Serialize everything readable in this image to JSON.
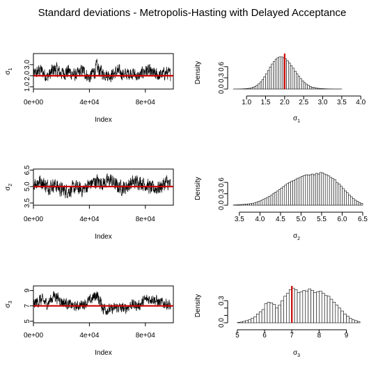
{
  "title": "Standard deviations - Metropolis-Hasting with Delayed Acceptance",
  "colors": {
    "reference_line": "#cc0000",
    "trace": "#000000",
    "bar_fill": "#ffffff"
  },
  "chart_data": [
    {
      "type": "line",
      "panel": "trace-sigma1",
      "xlabel": "Index",
      "ylabel": "σ1",
      "ylabel_base": "σ",
      "ylabel_sub": "1",
      "xlim": [
        0,
        100000
      ],
      "ylim": [
        0.8,
        4.0
      ],
      "xticks": [
        0,
        40000,
        80000
      ],
      "xtick_labels": [
        "0e+00",
        "4e+04",
        "8e+04"
      ],
      "yticks": [
        1.0,
        2.0,
        3.0
      ],
      "ytick_labels": [
        "1.0",
        "2.0",
        "3.0"
      ],
      "x": [
        0,
        5000,
        10000,
        15000,
        20000,
        25000,
        30000,
        35000,
        40000,
        45000,
        50000,
        55000,
        60000,
        65000,
        70000,
        75000,
        80000,
        85000,
        90000,
        95000,
        98000
      ],
      "y": [
        2.1,
        2.5,
        1.9,
        2.6,
        2.2,
        2.4,
        2.0,
        2.5,
        1.8,
        2.7,
        2.2,
        2.0,
        2.4,
        2.1,
        2.3,
        1.9,
        2.5,
        2.2,
        2.0,
        2.3,
        2.1
      ],
      "y_low": [
        1.5,
        1.6,
        1.4,
        1.6,
        1.5,
        1.5,
        1.4,
        1.6,
        1.3,
        1.6,
        1.5,
        1.4,
        1.6,
        1.5,
        1.6,
        1.4,
        1.6,
        1.5,
        1.4,
        1.6,
        1.5
      ],
      "y_high": [
        3.0,
        3.4,
        3.1,
        3.6,
        3.2,
        3.5,
        3.0,
        3.3,
        2.9,
        3.8,
        3.1,
        3.0,
        3.4,
        3.1,
        3.3,
        2.9,
        3.5,
        3.2,
        3.0,
        3.3,
        3.1
      ],
      "reference_value": 2.0
    },
    {
      "type": "bar",
      "panel": "hist-sigma1",
      "xlabel": "σ1",
      "xlabel_base": "σ",
      "xlabel_sub": "1",
      "ylabel": "Density",
      "xlim": [
        0.65,
        4.05
      ],
      "ylim": [
        0,
        0.95
      ],
      "xticks": [
        1.0,
        1.5,
        2.0,
        2.5,
        3.0,
        3.5,
        4.0
      ],
      "xtick_labels": [
        "1.0",
        "1.5",
        "2.0",
        "2.5",
        "3.0",
        "3.5",
        "4.0"
      ],
      "yticks": [
        0.0,
        0.3,
        0.6
      ],
      "ytick_labels": [
        "0.0",
        "0.3",
        "0.6"
      ],
      "bin_start": 0.65,
      "bin_width": 0.05,
      "values": [
        0.001,
        0.001,
        0.002,
        0.003,
        0.004,
        0.006,
        0.009,
        0.014,
        0.02,
        0.03,
        0.05,
        0.07,
        0.1,
        0.14,
        0.19,
        0.25,
        0.33,
        0.41,
        0.5,
        0.59,
        0.67,
        0.74,
        0.8,
        0.84,
        0.86,
        0.86,
        0.84,
        0.81,
        0.76,
        0.7,
        0.63,
        0.56,
        0.48,
        0.41,
        0.34,
        0.28,
        0.22,
        0.17,
        0.13,
        0.1,
        0.07,
        0.05,
        0.04,
        0.03,
        0.02,
        0.015,
        0.01,
        0.008,
        0.006,
        0.004,
        0.003,
        0.002,
        0.002,
        0.001,
        0.001,
        0.001,
        0.001,
        0.0,
        0.0,
        0.0,
        0.0,
        0.0,
        0.0,
        0.0,
        0.0,
        0.0,
        0.0,
        0.0
      ],
      "reference_value": 2.0
    },
    {
      "type": "line",
      "panel": "trace-sigma2",
      "xlabel": "Index",
      "ylabel": "σ2",
      "ylabel_base": "σ",
      "ylabel_sub": "2",
      "xlim": [
        0,
        100000
      ],
      "ylim": [
        3.3,
        6.6
      ],
      "xticks": [
        0,
        40000,
        80000
      ],
      "xtick_labels": [
        "0e+00",
        "4e+04",
        "8e+04"
      ],
      "yticks": [
        3.5,
        5.0,
        6.5
      ],
      "ytick_labels": [
        "3.5",
        "5.0",
        "6.5"
      ],
      "x": [
        0,
        5000,
        10000,
        15000,
        20000,
        25000,
        30000,
        35000,
        40000,
        45000,
        50000,
        55000,
        60000,
        65000,
        70000,
        75000,
        80000,
        85000,
        90000,
        95000,
        98000
      ],
      "y": [
        5.3,
        5.5,
        5.0,
        5.2,
        4.7,
        4.6,
        4.9,
        4.7,
        5.2,
        5.5,
        5.3,
        5.6,
        5.0,
        4.9,
        5.3,
        5.5,
        5.2,
        4.8,
        4.9,
        5.4,
        5.1
      ],
      "y_low": [
        4.3,
        4.5,
        4.0,
        4.3,
        3.7,
        3.8,
        4.0,
        3.9,
        4.3,
        4.5,
        4.4,
        4.5,
        4.0,
        4.0,
        4.3,
        4.5,
        4.2,
        3.9,
        4.0,
        4.4,
        4.1
      ],
      "y_high": [
        6.3,
        6.4,
        6.0,
        6.1,
        5.7,
        5.6,
        6.0,
        5.7,
        6.1,
        6.4,
        6.2,
        6.4,
        5.9,
        6.0,
        6.2,
        6.4,
        6.1,
        5.8,
        5.9,
        6.4,
        6.1
      ],
      "reference_value": 5.0
    },
    {
      "type": "bar",
      "panel": "hist-sigma2",
      "xlabel": "σ2",
      "xlabel_base": "σ",
      "xlabel_sub": "2",
      "ylabel": "Density",
      "xlim": [
        3.35,
        6.5
      ],
      "ylim": [
        0,
        0.95
      ],
      "xticks": [
        3.5,
        4.0,
        4.5,
        5.0,
        5.5,
        6.0,
        6.5
      ],
      "xtick_labels": [
        "3.5",
        "4.0",
        "4.5",
        "5.0",
        "5.5",
        "6.0",
        "6.5"
      ],
      "yticks": [
        0.0,
        0.3,
        0.6
      ],
      "ytick_labels": [
        "0.0",
        "0.3",
        "0.6"
      ],
      "bin_start": 3.35,
      "bin_width": 0.05,
      "values": [
        0.005,
        0.008,
        0.012,
        0.015,
        0.02,
        0.025,
        0.03,
        0.035,
        0.04,
        0.05,
        0.06,
        0.08,
        0.1,
        0.12,
        0.15,
        0.17,
        0.2,
        0.23,
        0.26,
        0.3,
        0.34,
        0.37,
        0.41,
        0.45,
        0.49,
        0.53,
        0.57,
        0.6,
        0.63,
        0.65,
        0.68,
        0.71,
        0.73,
        0.76,
        0.78,
        0.8,
        0.79,
        0.8,
        0.82,
        0.8,
        0.84,
        0.82,
        0.86,
        0.85,
        0.82,
        0.8,
        0.77,
        0.73,
        0.7,
        0.67,
        0.6,
        0.56,
        0.5,
        0.44,
        0.38,
        0.33,
        0.27,
        0.22,
        0.17,
        0.13,
        0.1,
        0.07,
        0.05
      ]
    },
    {
      "type": "line",
      "panel": "trace-sigma3",
      "xlabel": "Index",
      "ylabel": "σ3",
      "ylabel_base": "σ",
      "ylabel_sub": "3",
      "xlim": [
        0,
        100000
      ],
      "ylim": [
        4.8,
        9.6
      ],
      "xticks": [
        0,
        40000,
        80000
      ],
      "xtick_labels": [
        "0e+00",
        "4e+04",
        "8e+04"
      ],
      "yticks": [
        5,
        7,
        9
      ],
      "ytick_labels": [
        "5",
        "7",
        "9"
      ],
      "x": [
        0,
        5000,
        10000,
        15000,
        20000,
        25000,
        30000,
        35000,
        40000,
        45000,
        50000,
        55000,
        60000,
        65000,
        70000,
        75000,
        80000,
        85000,
        90000,
        95000,
        98000
      ],
      "y": [
        7.2,
        7.8,
        7.3,
        8.4,
        7.6,
        7.2,
        6.9,
        7.2,
        7.6,
        8.5,
        6.7,
        6.5,
        6.8,
        6.6,
        7.2,
        7.0,
        7.8,
        8.0,
        7.4,
        7.3,
        6.9
      ],
      "y_low": [
        6.0,
        6.4,
        6.2,
        7.0,
        6.5,
        6.2,
        6.0,
        6.3,
        6.5,
        7.1,
        5.2,
        5.6,
        5.8,
        5.6,
        6.2,
        6.0,
        6.7,
        6.8,
        6.3,
        6.2,
        5.7
      ],
      "y_high": [
        8.2,
        8.8,
        8.3,
        9.3,
        8.6,
        8.2,
        7.8,
        8.2,
        8.6,
        9.3,
        7.8,
        7.5,
        7.9,
        7.6,
        8.2,
        8.0,
        8.8,
        8.9,
        8.4,
        8.3,
        8.0
      ],
      "reference_value": 7.0
    },
    {
      "type": "bar",
      "panel": "hist-sigma3",
      "xlabel": "σ3",
      "xlabel_base": "σ",
      "xlabel_sub": "3",
      "ylabel": "Density",
      "xlim": [
        4.85,
        9.6
      ],
      "ylim": [
        0,
        0.5
      ],
      "xticks": [
        5,
        6,
        7,
        8,
        9
      ],
      "xtick_labels": [
        "5",
        "6",
        "7",
        "8",
        "9"
      ],
      "yticks": [
        0.0,
        0.1,
        0.2,
        0.3
      ],
      "ytick_labels": [
        "0.0",
        "",
        "",
        "0.3"
      ],
      "bin_start": 5.0,
      "bin_width": 0.1,
      "values": [
        0.005,
        0.01,
        0.02,
        0.03,
        0.04,
        0.06,
        0.08,
        0.12,
        0.15,
        0.18,
        0.26,
        0.28,
        0.27,
        0.25,
        0.2,
        0.24,
        0.3,
        0.36,
        0.4,
        0.45,
        0.47,
        0.45,
        0.41,
        0.42,
        0.44,
        0.43,
        0.46,
        0.44,
        0.41,
        0.42,
        0.43,
        0.4,
        0.37,
        0.36,
        0.32,
        0.28,
        0.24,
        0.2,
        0.16,
        0.12,
        0.09,
        0.06,
        0.04,
        0.03,
        0.015
      ],
      "reference_value": 7.0
    }
  ]
}
